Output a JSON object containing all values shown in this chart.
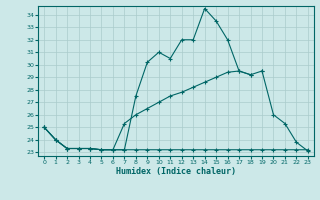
{
  "xlabel": "Humidex (Indice chaleur)",
  "bg_color": "#cce8e8",
  "grid_color": "#aacccc",
  "line_color": "#006666",
  "xlim": [
    -0.5,
    23.5
  ],
  "ylim": [
    22.7,
    34.7
  ],
  "yticks": [
    23,
    24,
    25,
    26,
    27,
    28,
    29,
    30,
    31,
    32,
    33,
    34
  ],
  "xticks": [
    0,
    1,
    2,
    3,
    4,
    5,
    6,
    7,
    8,
    9,
    10,
    11,
    12,
    13,
    14,
    15,
    16,
    17,
    18,
    19,
    20,
    21,
    22,
    23
  ],
  "lines": [
    {
      "x": [
        0,
        1,
        2,
        3,
        4,
        5,
        6,
        7,
        8,
        9,
        10,
        11,
        12,
        13,
        14,
        15,
        16,
        17,
        18
      ],
      "y": [
        25.0,
        24.0,
        23.3,
        23.3,
        23.3,
        23.2,
        23.2,
        23.2,
        27.5,
        30.2,
        31.0,
        30.5,
        32.0,
        32.0,
        34.5,
        33.5,
        32.0,
        29.5,
        29.2
      ]
    },
    {
      "x": [
        0,
        1,
        2,
        3,
        4,
        5,
        6,
        7,
        8,
        9,
        10,
        11,
        12,
        13,
        14,
        15,
        16,
        17,
        18,
        19
      ],
      "y": [
        25.0,
        24.0,
        23.3,
        23.3,
        23.3,
        23.2,
        23.2,
        25.3,
        26.0,
        26.5,
        27.0,
        27.5,
        27.8,
        28.2,
        28.6,
        29.0,
        29.4,
        29.5,
        29.2,
        29.5
      ]
    },
    {
      "x": [
        0,
        1,
        2,
        3,
        4,
        5,
        6,
        7,
        8,
        9,
        10,
        11,
        12,
        13,
        14,
        15,
        16,
        17,
        18,
        19,
        20,
        21,
        22,
        23
      ],
      "y": [
        25.0,
        24.0,
        23.3,
        23.3,
        23.3,
        23.2,
        23.2,
        23.2,
        23.2,
        23.2,
        23.2,
        23.2,
        23.2,
        23.2,
        23.2,
        23.2,
        23.2,
        23.2,
        23.2,
        23.2,
        23.2,
        23.2,
        23.2,
        23.2
      ]
    },
    {
      "x": [
        19,
        20,
        21,
        22,
        23
      ],
      "y": [
        29.5,
        26.0,
        25.3,
        23.8,
        23.1
      ]
    }
  ]
}
